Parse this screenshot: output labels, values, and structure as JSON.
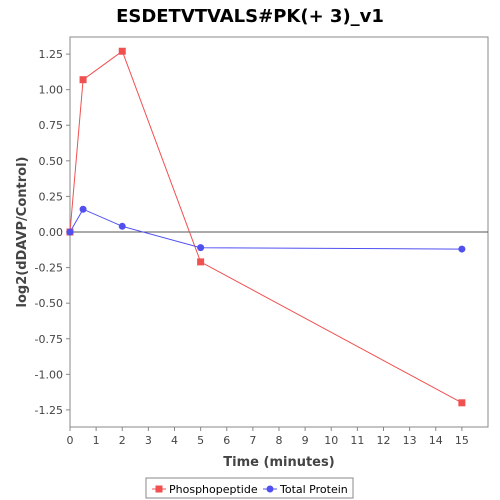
{
  "chart_data": {
    "type": "line",
    "title": "ESDETVTVALS#PK(+ 3)_v1",
    "xlabel": "Time (minutes)",
    "ylabel": "log2(dDAVP/Control)",
    "xlim": [
      0,
      16
    ],
    "ylim": [
      -1.37,
      1.37
    ],
    "x_ticks": [
      0,
      1,
      2,
      3,
      4,
      5,
      6,
      7,
      8,
      9,
      10,
      11,
      12,
      13,
      14,
      15
    ],
    "y_ticks": [
      1.25,
      1.0,
      0.75,
      0.5,
      0.25,
      0.0,
      -0.25,
      -0.5,
      -0.75,
      -1.0,
      -1.25
    ],
    "y_tick_labels": [
      "1.25",
      "1.00",
      "0.75",
      "0.50",
      "0.25",
      "0.00",
      "-0.25",
      "-0.50",
      "-0.75",
      "-1.00",
      "-1.25"
    ],
    "zero_line": true,
    "grid": false,
    "legend_position": "bottom",
    "series": [
      {
        "name": "Phosphopeptide",
        "color": "#f05050",
        "marker": "square",
        "x": [
          0,
          0.5,
          2,
          5,
          15
        ],
        "y": [
          0.0,
          1.07,
          1.27,
          -0.21,
          -1.2
        ]
      },
      {
        "name": "Total Protein",
        "color": "#5050f0",
        "marker": "circle",
        "x": [
          0,
          0.5,
          2,
          5,
          15
        ],
        "y": [
          0.0,
          0.16,
          0.04,
          -0.11,
          -0.12
        ]
      }
    ]
  }
}
